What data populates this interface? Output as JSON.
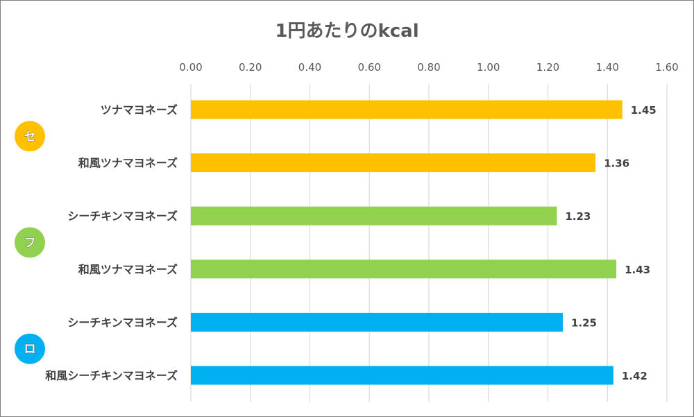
{
  "chart_data": {
    "type": "bar",
    "orientation": "horizontal",
    "title": "1円あたりのkcal",
    "xlim": [
      0,
      1.6
    ],
    "ticks": [
      "0.00",
      "0.20",
      "0.40",
      "0.60",
      "0.80",
      "1.00",
      "1.20",
      "1.40",
      "1.60"
    ],
    "tick_position": "top",
    "grid": true,
    "groups": [
      {
        "badge": "セ",
        "color": "#FFC000"
      },
      {
        "badge": "フ",
        "color": "#92D050"
      },
      {
        "badge": "ロ",
        "color": "#00B0F0"
      }
    ],
    "bars": [
      {
        "label": "ツナマヨネーズ",
        "value": 1.45,
        "value_label": "1.45",
        "group": 0
      },
      {
        "label": "和風ツナマヨネーズ",
        "value": 1.36,
        "value_label": "1.36",
        "group": 0
      },
      {
        "label": "シーチキンマヨネーズ",
        "value": 1.23,
        "value_label": "1.23",
        "group": 1
      },
      {
        "label": "和風ツナマヨネーズ",
        "value": 1.43,
        "value_label": "1.43",
        "group": 1
      },
      {
        "label": "シーチキンマヨネーズ",
        "value": 1.25,
        "value_label": "1.25",
        "group": 2
      },
      {
        "label": "和風シーチキンマヨネーズ",
        "value": 1.42,
        "value_label": "1.42",
        "group": 2
      }
    ]
  }
}
